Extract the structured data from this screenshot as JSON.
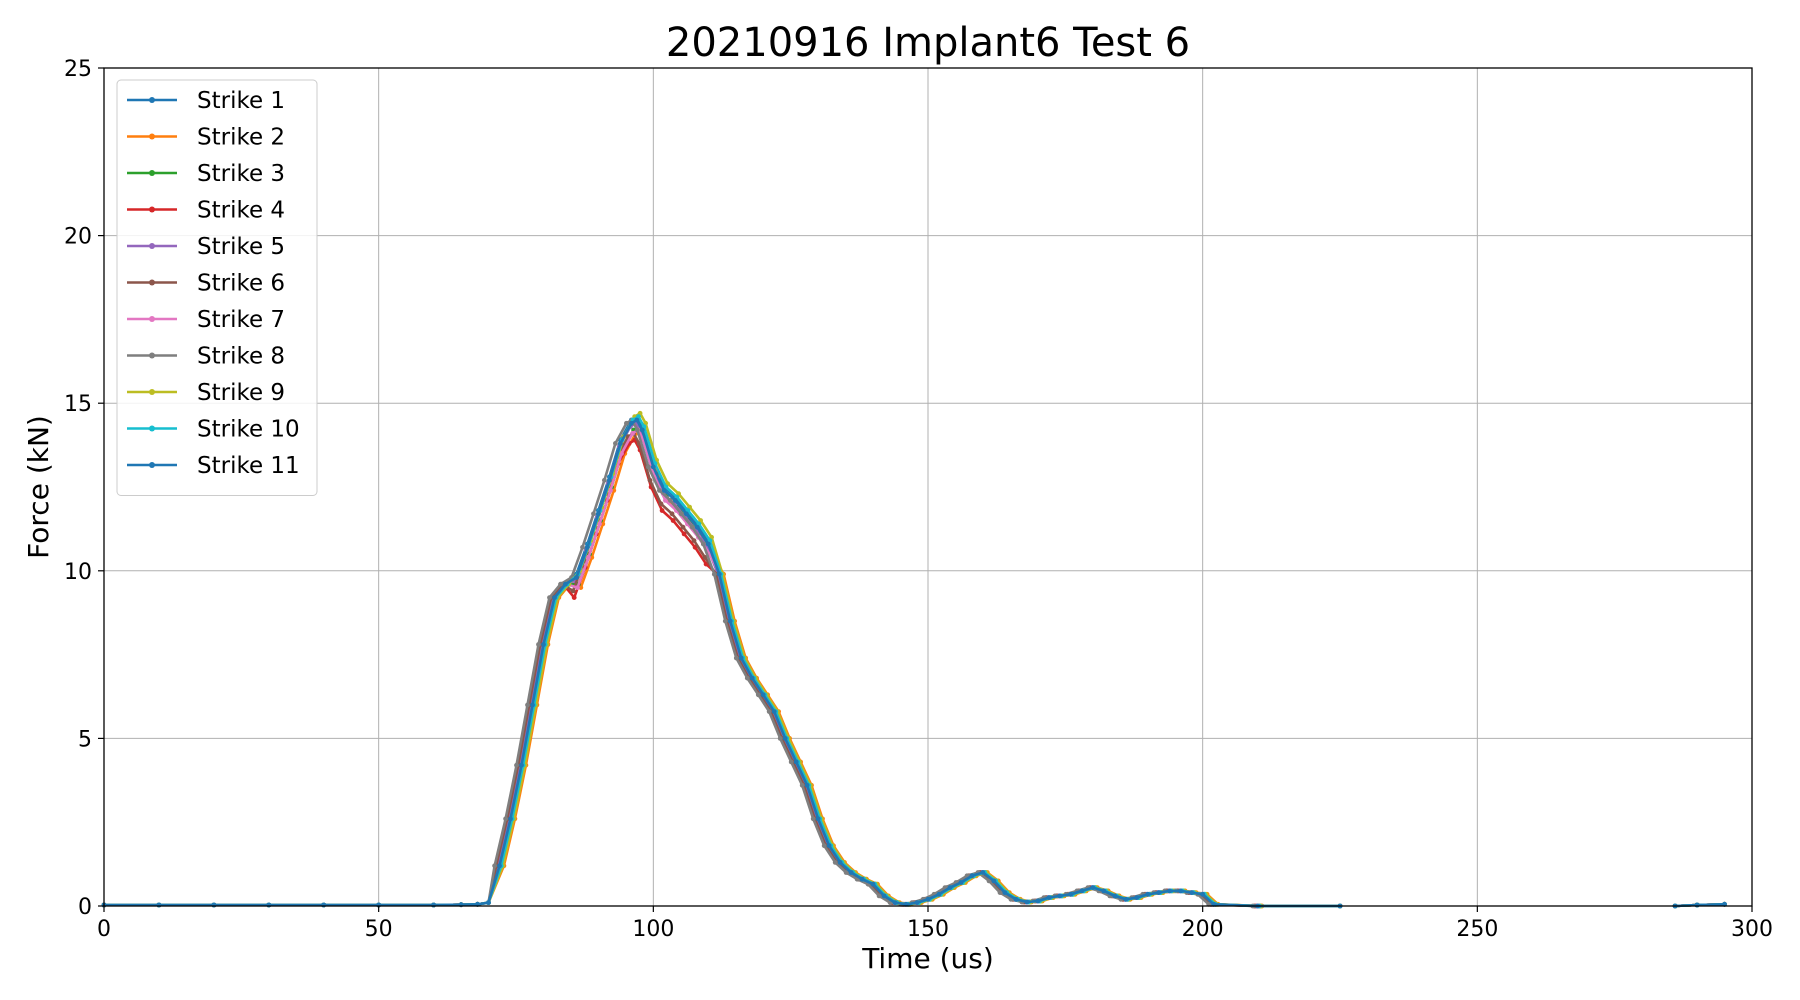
{
  "chart_data": {
    "type": "line",
    "title": "20210916 Implant6 Test 6",
    "xlabel": "Time (us)",
    "ylabel": "Force (kN)",
    "xlim": [
      0,
      300
    ],
    "ylim": [
      0,
      25
    ],
    "x_ticks": [
      0,
      50,
      100,
      150,
      200,
      250,
      300
    ],
    "y_ticks": [
      0,
      5,
      10,
      15,
      20,
      25
    ],
    "x_tick_labels": [
      "0",
      "50",
      "100",
      "150",
      "200",
      "250",
      "300"
    ],
    "y_tick_labels": [
      "0",
      "5",
      "10",
      "15",
      "20",
      "25"
    ],
    "grid": true,
    "legend_position": "top-left",
    "x": [
      0,
      10,
      20,
      30,
      40,
      50,
      60,
      65,
      68,
      70,
      72,
      74,
      76,
      78,
      80,
      82,
      84,
      86,
      88,
      90,
      92,
      94,
      96,
      97,
      98,
      100,
      102,
      104,
      106,
      108,
      110,
      112,
      114,
      116,
      118,
      120,
      122,
      124,
      126,
      128,
      130,
      132,
      134,
      136,
      138,
      140,
      142,
      144,
      146,
      148,
      150,
      152,
      154,
      156,
      158,
      160,
      162,
      164,
      166,
      168,
      170,
      172,
      174,
      176,
      178,
      180,
      182,
      184,
      186,
      188,
      190,
      192,
      194,
      196,
      198,
      200,
      202,
      210,
      225,
      286,
      290,
      295
    ],
    "series": [
      {
        "name": "Strike 1",
        "color": "#1f77b4",
        "dy": 0.0,
        "dx": 0.0
      },
      {
        "name": "Strike 2",
        "color": "#ff7f0e",
        "dy": -0.4,
        "dx": 0.8
      },
      {
        "name": "Strike 3",
        "color": "#2ca02c",
        "dy": -0.3,
        "dx": 0.4
      },
      {
        "name": "Strike 4",
        "color": "#d62728",
        "dy": -0.7,
        "dx": -0.4
      },
      {
        "name": "Strike 5",
        "color": "#9467bd",
        "dy": -0.2,
        "dx": -0.2
      },
      {
        "name": "Strike 6",
        "color": "#8c564b",
        "dy": -0.5,
        "dx": -0.6
      },
      {
        "name": "Strike 7",
        "color": "#e377c2",
        "dy": -0.4,
        "dx": 0.2
      },
      {
        "name": "Strike 8",
        "color": "#7f7f7f",
        "dy": -0.1,
        "dx": -0.9
      },
      {
        "name": "Strike 9",
        "color": "#bcbd22",
        "dy": 0.1,
        "dx": 0.6
      },
      {
        "name": "Strike 10",
        "color": "#17becf",
        "dy": 0.0,
        "dx": 0.3
      },
      {
        "name": "Strike 11",
        "color": "#1f77b4",
        "dy": -0.1,
        "dx": 0.0
      }
    ],
    "base_values": [
      0.03,
      0.03,
      0.03,
      0.03,
      0.03,
      0.03,
      0.03,
      0.04,
      0.05,
      0.1,
      1.2,
      2.6,
      4.2,
      6.0,
      7.8,
      9.2,
      9.6,
      9.9,
      10.8,
      11.8,
      12.8,
      13.9,
      14.5,
      14.6,
      14.3,
      13.2,
      12.5,
      12.2,
      11.8,
      11.4,
      10.9,
      9.9,
      8.5,
      7.4,
      6.8,
      6.3,
      5.8,
      5.0,
      4.3,
      3.6,
      2.6,
      1.8,
      1.3,
      1.0,
      0.8,
      0.65,
      0.3,
      0.1,
      0.05,
      0.1,
      0.2,
      0.35,
      0.55,
      0.7,
      0.9,
      1.0,
      0.75,
      0.4,
      0.2,
      0.12,
      0.15,
      0.25,
      0.3,
      0.35,
      0.45,
      0.55,
      0.45,
      0.3,
      0.2,
      0.25,
      0.35,
      0.4,
      0.45,
      0.45,
      0.4,
      0.35,
      0.05,
      0.0,
      0.0,
      0.0,
      0.03,
      0.05
    ]
  }
}
